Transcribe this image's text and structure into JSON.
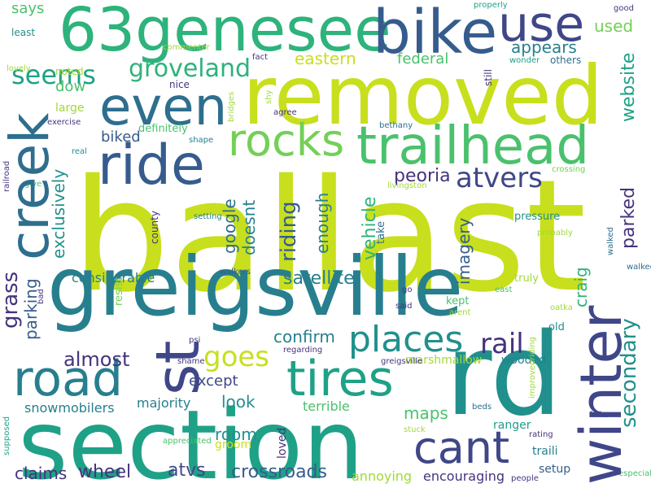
{
  "palette": {
    "yellow": "#c8df1d",
    "yellowgreen": "#a0da39",
    "lime": "#73d056",
    "green": "#4ac16d",
    "teal_green": "#2db37b",
    "teal": "#1fa187",
    "teal_blue": "#21908d",
    "blue_teal": "#277f8e",
    "steel": "#2e6e8e",
    "blue": "#365c8d",
    "indigo": "#3f4788",
    "purple": "#46337e",
    "dark_purple": "#440154"
  },
  "words": [
    {
      "text": "ballast",
      "color": "#c8df1d",
      "rotated": false
    },
    {
      "text": "removed",
      "color": "#c8df1d",
      "rotated": false
    },
    {
      "text": "greigsville",
      "color": "#277f8e",
      "rotated": false
    },
    {
      "text": "section",
      "color": "#1fa187",
      "rotated": false
    },
    {
      "text": "rd",
      "color": "#21908d",
      "rotated": false
    },
    {
      "text": "63geneseе",
      "color": "#2db37b",
      "rotated": false
    },
    {
      "text": "bike",
      "color": "#365c8d",
      "rotated": false
    },
    {
      "text": "use",
      "color": "#3f4788",
      "rotated": false
    },
    {
      "text": "creek",
      "color": "#2e6e8e",
      "rotated": true
    },
    {
      "text": "even",
      "color": "#2e6e8e",
      "rotated": false
    },
    {
      "text": "trailhead",
      "color": "#4ac16d",
      "rotated": false
    },
    {
      "text": "rocks",
      "color": "#73d056",
      "rotated": false
    },
    {
      "text": "ride",
      "color": "#365c8d",
      "rotated": false
    },
    {
      "text": "st",
      "color": "#3f4788",
      "rotated": true
    },
    {
      "text": "winter",
      "color": "#3f4788",
      "rotated": true
    },
    {
      "text": "road",
      "color": "#277f8e",
      "rotated": false
    },
    {
      "text": "tires",
      "color": "#1fa187",
      "rotated": false
    },
    {
      "text": "cant",
      "color": "#3f4788",
      "rotated": false
    },
    {
      "text": "seems",
      "color": "#1fa187",
      "rotated": false
    },
    {
      "text": "groveland",
      "color": "#2db37b",
      "rotated": false
    },
    {
      "text": "places",
      "color": "#21908d",
      "rotated": false
    },
    {
      "text": "goes",
      "color": "#c8df1d",
      "rotated": false
    },
    {
      "text": "rail",
      "color": "#46337e",
      "rotated": false
    },
    {
      "text": "atvers",
      "color": "#3f4788",
      "rotated": false
    },
    {
      "text": "peoria",
      "color": "#46337e",
      "rotated": false
    },
    {
      "text": "appears",
      "color": "#277f8e",
      "rotated": false
    },
    {
      "text": "used",
      "color": "#73d056",
      "rotated": false
    },
    {
      "text": "website",
      "color": "#1fa187",
      "rotated": true
    },
    {
      "text": "secondary",
      "color": "#21908d",
      "rotated": true
    },
    {
      "text": "parked",
      "color": "#46337e",
      "rotated": true
    },
    {
      "text": "craig",
      "color": "#2db37b",
      "rotated": true
    },
    {
      "text": "grass",
      "color": "#46337e",
      "rotated": true
    },
    {
      "text": "parking",
      "color": "#365c8d",
      "rotated": true
    },
    {
      "text": "exclusively",
      "color": "#21908d",
      "rotated": true
    },
    {
      "text": "riding",
      "color": "#365c8d",
      "rotated": true
    },
    {
      "text": "google",
      "color": "#2e6e8e",
      "rotated": true
    },
    {
      "text": "doesnt",
      "color": "#277f8e",
      "rotated": true
    },
    {
      "text": "enough",
      "color": "#277f8e",
      "rotated": true
    },
    {
      "text": "imagery",
      "color": "#365c8d",
      "rotated": true
    },
    {
      "text": "vehicle",
      "color": "#2db37b",
      "rotated": true
    },
    {
      "text": "satellite",
      "color": "#277f8e",
      "rotated": false
    },
    {
      "text": "considerable",
      "color": "#277f8e",
      "rotated": false
    },
    {
      "text": "confirm",
      "color": "#277f8e",
      "rotated": false
    },
    {
      "text": "almost",
      "color": "#46337e",
      "rotated": false
    },
    {
      "text": "except",
      "color": "#3f4788",
      "rotated": false
    },
    {
      "text": "look",
      "color": "#21908d",
      "rotated": false
    },
    {
      "text": "majority",
      "color": "#277f8e",
      "rotated": false
    },
    {
      "text": "snowmobilers",
      "color": "#277f8e",
      "rotated": false
    },
    {
      "text": "room",
      "color": "#21908d",
      "rotated": false
    },
    {
      "text": "groom",
      "color": "#c8df1d",
      "rotated": false
    },
    {
      "text": "maps",
      "color": "#4ac16d",
      "rotated": false
    },
    {
      "text": "crossroads",
      "color": "#365c8d",
      "rotated": false
    },
    {
      "text": "atvs",
      "color": "#3f4788",
      "rotated": false
    },
    {
      "text": "wheel",
      "color": "#46337e",
      "rotated": false
    },
    {
      "text": "claims",
      "color": "#46337e",
      "rotated": false
    },
    {
      "text": "encouraging",
      "color": "#46337e",
      "rotated": false
    },
    {
      "text": "annoying",
      "color": "#a0da39",
      "rotated": false
    },
    {
      "text": "terrible",
      "color": "#4ac16d",
      "rotated": false
    },
    {
      "text": "marshmallow",
      "color": "#a0da39",
      "rotated": false
    },
    {
      "text": "wooded",
      "color": "#277f8e",
      "rotated": false
    },
    {
      "text": "ranger",
      "color": "#1fa187",
      "rotated": false
    },
    {
      "text": "traili",
      "color": "#277f8e",
      "rotated": false
    },
    {
      "text": "setup",
      "color": "#365c8d",
      "rotated": false
    },
    {
      "text": "biked",
      "color": "#365c8d",
      "rotated": false
    },
    {
      "text": "definitely",
      "color": "#4ac16d",
      "rotated": false
    },
    {
      "text": "eastern",
      "color": "#c8df1d",
      "rotated": false
    },
    {
      "text": "federal",
      "color": "#4ac16d",
      "rotated": false
    },
    {
      "text": "dow",
      "color": "#4ac16d",
      "rotated": false
    },
    {
      "text": "large",
      "color": "#a0da39",
      "rotated": false
    },
    {
      "text": "noted",
      "color": "#a0da39",
      "rotated": false
    },
    {
      "text": "nice",
      "color": "#46337e",
      "rotated": false
    },
    {
      "text": "others",
      "color": "#2e6e8e",
      "rotated": false
    },
    {
      "text": "says",
      "color": "#4ac16d",
      "rotated": false
    },
    {
      "text": "least",
      "color": "#21908d",
      "rotated": false
    },
    {
      "text": "lovely",
      "color": "#a0da39",
      "rotated": false
    },
    {
      "text": "commenter",
      "color": "#a0da39",
      "rotated": false
    },
    {
      "text": "fact",
      "color": "#46337e",
      "rotated": false
    },
    {
      "text": "exercise",
      "color": "#46337e",
      "rotated": false
    },
    {
      "text": "agree",
      "color": "#46337e",
      "rotated": false
    },
    {
      "text": "shape",
      "color": "#277f8e",
      "rotated": false
    },
    {
      "text": "real",
      "color": "#21908d",
      "rotated": false
    },
    {
      "text": "give",
      "color": "#4ac16d",
      "rotated": false
    },
    {
      "text": "bethany",
      "color": "#2e6e8e",
      "rotated": false
    },
    {
      "text": "properly",
      "color": "#1fa187",
      "rotated": false
    },
    {
      "text": "good",
      "color": "#46337e",
      "rotated": false
    },
    {
      "text": "wonder",
      "color": "#1fa187",
      "rotated": false
    },
    {
      "text": "still",
      "color": "#46337e",
      "rotated": true
    },
    {
      "text": "bridges",
      "color": "#a0da39",
      "rotated": true
    },
    {
      "text": "shy",
      "color": "#a0da39",
      "rotated": true
    },
    {
      "text": "livingston",
      "color": "#a0da39",
      "rotated": true
    },
    {
      "text": "crossing",
      "color": "#73d056",
      "rotated": false
    },
    {
      "text": "railroad",
      "color": "#46337e",
      "rotated": false
    },
    {
      "text": "pressure",
      "color": "#21908d",
      "rotated": true
    },
    {
      "text": "setting",
      "color": "#277f8e",
      "rotated": false
    },
    {
      "text": "take",
      "color": "#2e6e8e",
      "rotated": false
    },
    {
      "text": "probably",
      "color": "#a0da39",
      "rotated": true
    },
    {
      "text": "county",
      "color": "#46337e",
      "rotated": false
    },
    {
      "text": "walkers",
      "color": "#365c8d",
      "rotated": true
    },
    {
      "text": "truly",
      "color": "#a0da39",
      "rotated": false
    },
    {
      "text": "walked",
      "color": "#2e6e8e",
      "rotated": false
    },
    {
      "text": "east",
      "color": "#4ac16d",
      "rotated": false
    },
    {
      "text": "go",
      "color": "#46337e",
      "rotated": false
    },
    {
      "text": "kept",
      "color": "#4ac16d",
      "rotated": false
    },
    {
      "text": "said",
      "color": "#46337e",
      "rotated": false
    },
    {
      "text": "arent",
      "color": "#a0da39",
      "rotated": false
    },
    {
      "text": "oatka",
      "color": "#a0da39",
      "rotated": false
    },
    {
      "text": "resist",
      "color": "#73d056",
      "rotated": false
    },
    {
      "text": "bad",
      "color": "#46337e",
      "rotated": true
    },
    {
      "text": "old",
      "color": "#21908d",
      "rotated": true
    },
    {
      "text": "psi",
      "color": "#46337e",
      "rotated": false
    },
    {
      "text": "shame",
      "color": "#46337e",
      "rotated": false
    },
    {
      "text": "loved",
      "color": "#46337e",
      "rotated": false
    },
    {
      "text": "regarding",
      "color": "#46337e",
      "rotated": true
    },
    {
      "text": "greigsville",
      "color": "#46337e",
      "rotated": false
    },
    {
      "text": "supposed",
      "color": "#1fa187",
      "rotated": false
    },
    {
      "text": "improvedriding",
      "color": "#a0da39",
      "rotated": true
    },
    {
      "text": "beds",
      "color": "#2e6e8e",
      "rotated": true
    },
    {
      "text": "folks",
      "color": "#46337e",
      "rotated": false
    },
    {
      "text": "rating",
      "color": "#46337e",
      "rotated": false
    },
    {
      "text": "stuck",
      "color": "#a0da39",
      "rotated": false
    },
    {
      "text": "appreciated",
      "color": "#4ac16d",
      "rotated": false
    },
    {
      "text": "people",
      "color": "#46337e",
      "rotated": false
    },
    {
      "text": "especially",
      "color": "#4ac16d",
      "rotated": false
    },
    {
      "text": "high",
      "color": "#46337e",
      "rotated": false
    }
  ]
}
